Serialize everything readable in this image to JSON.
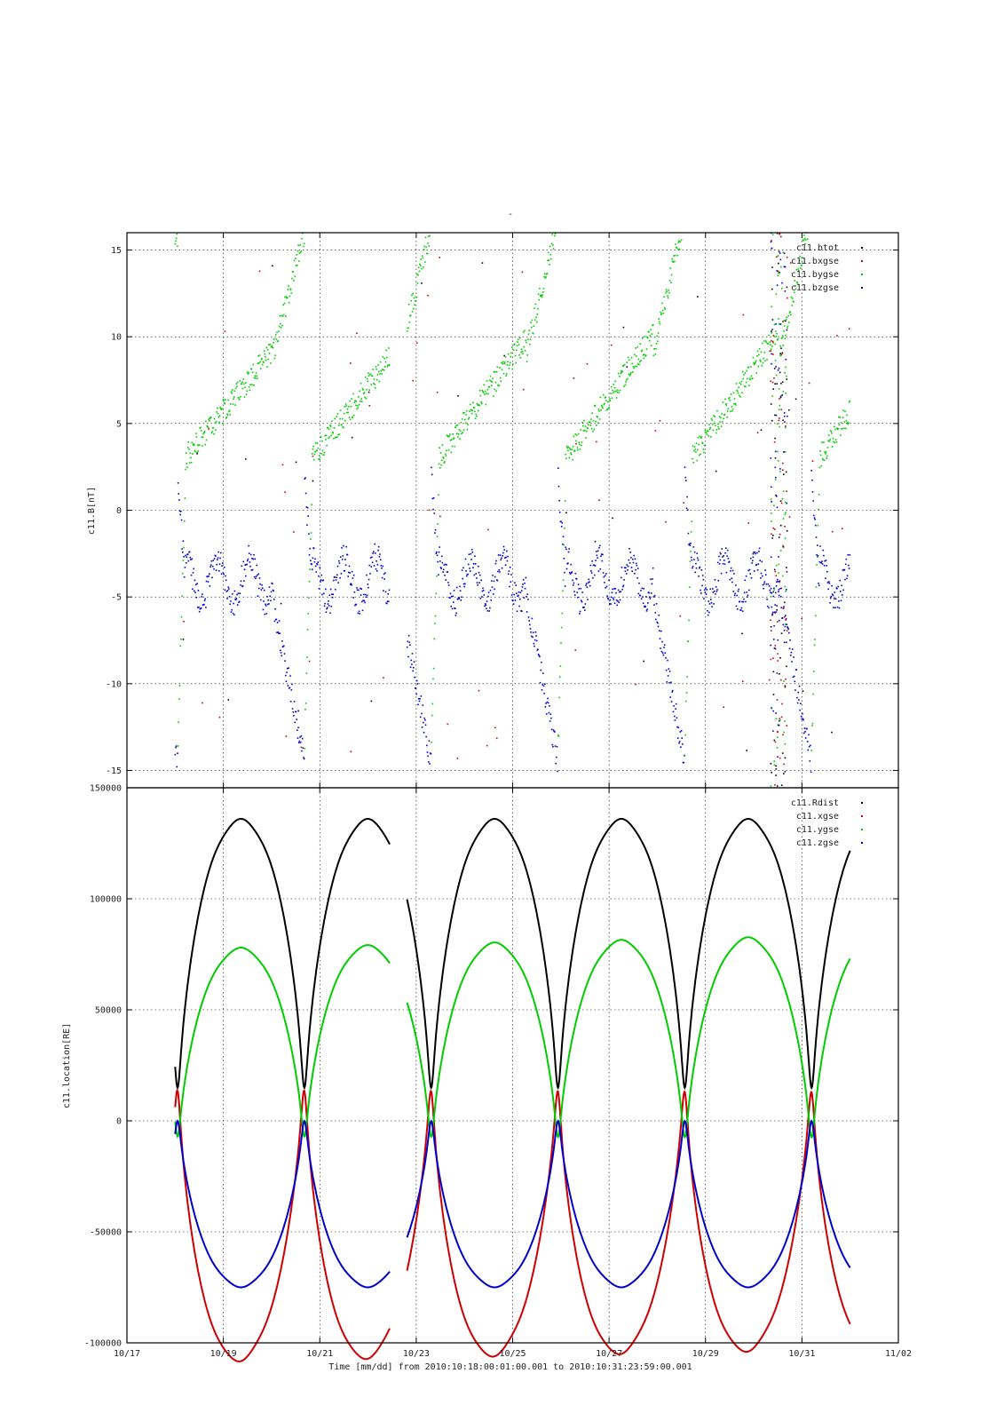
{
  "page": {
    "title_mark": "-"
  },
  "xaxis": {
    "label": "Time [mm/dd]  from 2010:10:18:00:01:00.001  to  2010:10:31:23:59:00.001",
    "ticks": [
      "10/17",
      "10/19",
      "10/21",
      "10/23",
      "10/25",
      "10/27",
      "10/29",
      "10/31",
      "11/02"
    ],
    "range_days": [
      0,
      16
    ],
    "grid": true
  },
  "chart_data": [
    {
      "type": "scatter",
      "ylabel": "c11.B[nT]",
      "ylim": [
        -16,
        16
      ],
      "yticks": [
        "15",
        "10",
        "5",
        "0",
        "-5",
        "-10",
        "-15"
      ],
      "ytick_values": [
        15,
        10,
        5,
        0,
        -5,
        -10,
        -15
      ],
      "grid": true,
      "legend_position": "top-right",
      "series": [
        {
          "name": "c11.btot",
          "color": "#000000"
        },
        {
          "name": "c11.bxgse",
          "color": "#cc0000"
        },
        {
          "name": "c11.bygse",
          "color": "#00cc00"
        },
        {
          "name": "c11.bzgse",
          "color": "#0000cc"
        }
      ]
    },
    {
      "type": "line",
      "ylabel": "c11.location[RE]",
      "ylim": [
        -100000,
        150000
      ],
      "yticks": [
        "150000",
        "100000",
        "50000",
        "0",
        "-50000",
        "-100000"
      ],
      "ytick_values": [
        150000,
        100000,
        50000,
        0,
        -50000,
        -100000
      ],
      "grid": true,
      "legend_position": "top-right",
      "series": [
        {
          "name": "c11.Rdist",
          "color": "#000000"
        },
        {
          "name": "c11.xgse",
          "color": "#cc0000"
        },
        {
          "name": "c11.ygse",
          "color": "#00cc00"
        },
        {
          "name": "c11.zgse",
          "color": "#0000cc"
        }
      ]
    }
  ]
}
